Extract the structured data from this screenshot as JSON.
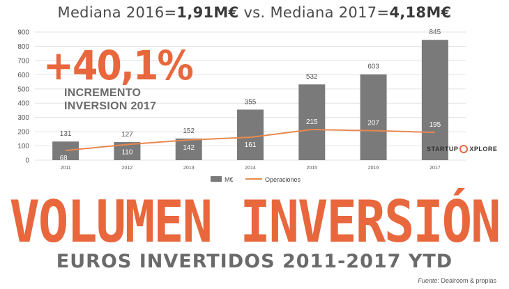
{
  "header": {
    "prefix_2016": "Mediana 2016=",
    "value_2016": "1,91M€",
    "middle": " vs. Mediana 2017=",
    "value_2017": "4,18M€"
  },
  "highlight": {
    "percent": "+40,1%",
    "line1": "INCREMENTO",
    "line2": "INVERSION 2017"
  },
  "logo": {
    "left": "STARTUP",
    "right": "XPLORE"
  },
  "headline": "VOLUMEN INVERSIÓN",
  "subheadline": "EUROS INVERTIDOS 2011-2017 YTD",
  "source": {
    "label": "Fuente:",
    "text": " Dealroom & propias"
  },
  "colors": {
    "bar": "#7a7a7a",
    "line": "#e8894e",
    "accent": "#e8673c",
    "grid": "#e3e3e3"
  },
  "chart_data": {
    "type": "bar",
    "categories": [
      "2011",
      "2012",
      "2013",
      "2014",
      "2015",
      "2016",
      "2017"
    ],
    "ylim": [
      0,
      900
    ],
    "yticks": [
      0,
      100,
      200,
      300,
      400,
      500,
      600,
      700,
      800,
      900
    ],
    "grid": true,
    "legend": "bottom",
    "series": [
      {
        "name": "M€",
        "type": "bar",
        "values": [
          131,
          127,
          152,
          355,
          532,
          603,
          845
        ]
      },
      {
        "name": "Operaciones",
        "type": "line",
        "values": [
          68,
          110,
          142,
          161,
          215,
          207,
          195
        ]
      }
    ]
  }
}
